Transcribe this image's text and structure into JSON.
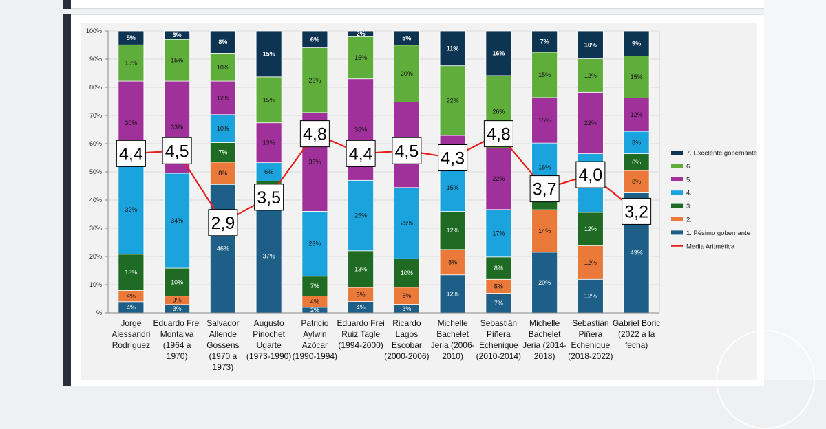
{
  "chart_data": {
    "type": "bar",
    "stacked": true,
    "categories": [
      [
        "Jorge",
        "Alessandri",
        "Rodríguez"
      ],
      [
        "Eduardo Frei",
        "Montalva",
        "(1964 a",
        "1970)"
      ],
      [
        "Salvador",
        "Allende",
        "Gossens",
        "(1970 a",
        "1973)"
      ],
      [
        "Augusto",
        "Pinochet",
        "Ugarte",
        "(1973-1990)"
      ],
      [
        "Patricio",
        "Aylwin",
        "Azócar",
        "(1990-1994)"
      ],
      [
        "Eduardo Frei",
        "Ruiz Tagle",
        "(1994-2000)"
      ],
      [
        "Ricardo",
        "Lagos",
        "Escobar",
        "(2000-2006)"
      ],
      [
        "Michelle",
        "Bachelet",
        "Jeria (2006-",
        "2010)"
      ],
      [
        "Sebastián",
        "Piñera",
        "Echenique",
        "(2010-2014)"
      ],
      [
        "Michelle",
        "Bachelet",
        "Jeria (2014-",
        "2018)"
      ],
      [
        "Sebastián",
        "Piñera",
        "Echenique",
        "(2018-2022)"
      ],
      [
        "Gabriel Boric",
        "(2022 a la",
        "fecha)"
      ]
    ],
    "series": [
      {
        "name": "1. Pésimo gobernante",
        "color": "#1d5f86",
        "values": [
          4,
          3,
          46,
          37,
          2,
          4,
          3,
          12,
          7,
          20,
          12,
          43
        ],
        "labels": [
          "4%",
          "3%",
          "46%",
          "37%",
          "2%",
          "4%",
          "3%",
          "12%",
          "7%",
          "20%",
          "12%",
          "43%"
        ]
      },
      {
        "name": "2.",
        "color": "#eb7a3a",
        "values": [
          4,
          3,
          8,
          0,
          4,
          5,
          6,
          8,
          5,
          14,
          12,
          8
        ],
        "labels": [
          "4%",
          "3%",
          "8%",
          "",
          "4%",
          "5%",
          "6%",
          "8%",
          "5%",
          "14%",
          "12%",
          "8%"
        ]
      },
      {
        "name": "3.",
        "color": "#1f6b24",
        "values": [
          13,
          10,
          7,
          6,
          7,
          13,
          10,
          12,
          8,
          6,
          12,
          6
        ],
        "labels": [
          "13%",
          "10%",
          "7%",
          "6%",
          "7%",
          "13%",
          "10%",
          "12%",
          "8%",
          "",
          "12%",
          "6%"
        ]
      },
      {
        "name": "4.",
        "color": "#1aa3dc",
        "values": [
          32,
          34,
          10,
          6,
          23,
          25,
          25,
          15,
          17,
          16,
          21,
          8
        ],
        "labels": [
          "32%",
          "34%",
          "10%",
          "6%",
          "23%",
          "25%",
          "25%",
          "15%",
          "17%",
          "16%",
          "21%",
          "8%"
        ]
      },
      {
        "name": "5.",
        "color": "#a0309a",
        "values": [
          30,
          33,
          12,
          13,
          35,
          36,
          30,
          9,
          22,
          15,
          22,
          12
        ],
        "labels": [
          "30%",
          "33%",
          "12%",
          "13%",
          "35%",
          "36%",
          "",
          "",
          "22%",
          "15%",
          "22%",
          "12%"
        ]
      },
      {
        "name": "6.",
        "color": "#5fae3b",
        "values": [
          13,
          15,
          10,
          15,
          23,
          15,
          20,
          22,
          26,
          15,
          12,
          15
        ],
        "labels": [
          "13%",
          "15%",
          "10%",
          "15%",
          "23%",
          "15%",
          "20%",
          "22%",
          "26%",
          "15%",
          "12%",
          "15%"
        ]
      },
      {
        "name": "7. Excelente gobernante",
        "color": "#0d3552",
        "values": [
          5,
          3,
          8,
          15,
          6,
          2,
          5,
          11,
          16,
          7,
          10,
          9
        ],
        "labels": [
          "5%",
          "3%",
          "8%",
          "15%",
          "6%",
          "2%",
          "5%",
          "11%",
          "16%",
          "7%",
          "10%",
          "9%"
        ]
      }
    ],
    "average_line": {
      "name": "Media Aritmética",
      "color": "#e8201b",
      "values": [
        4.4,
        4.5,
        2.9,
        3.5,
        4.8,
        4.4,
        4.5,
        4.3,
        4.8,
        3.7,
        4.0,
        3.2
      ],
      "labels": [
        "4,4",
        "4,5",
        "2,9",
        "3,5",
        "4,8",
        "4,4",
        "4,5",
        "4,3",
        "4,8",
        "3,7",
        "4,0",
        "3,2"
      ],
      "label_percent_positions": [
        56.5,
        57.5,
        32,
        41,
        63.5,
        56.5,
        57.5,
        55,
        63.5,
        44,
        49,
        36
      ]
    },
    "yticks": [
      "%",
      "10%",
      "20%",
      "30%",
      "40%",
      "50%",
      "60%",
      "70%",
      "80%",
      "90%",
      "100%"
    ],
    "ylim": [
      0,
      100
    ],
    "legend_position": "right",
    "legend_order": [
      "7. Excelente gobernante",
      "6.",
      "5.",
      "4.",
      "3.",
      "2.",
      "1. Pésimo gobernante",
      "Media Aritmética"
    ],
    "title": "",
    "xlabel": "",
    "ylabel": ""
  }
}
